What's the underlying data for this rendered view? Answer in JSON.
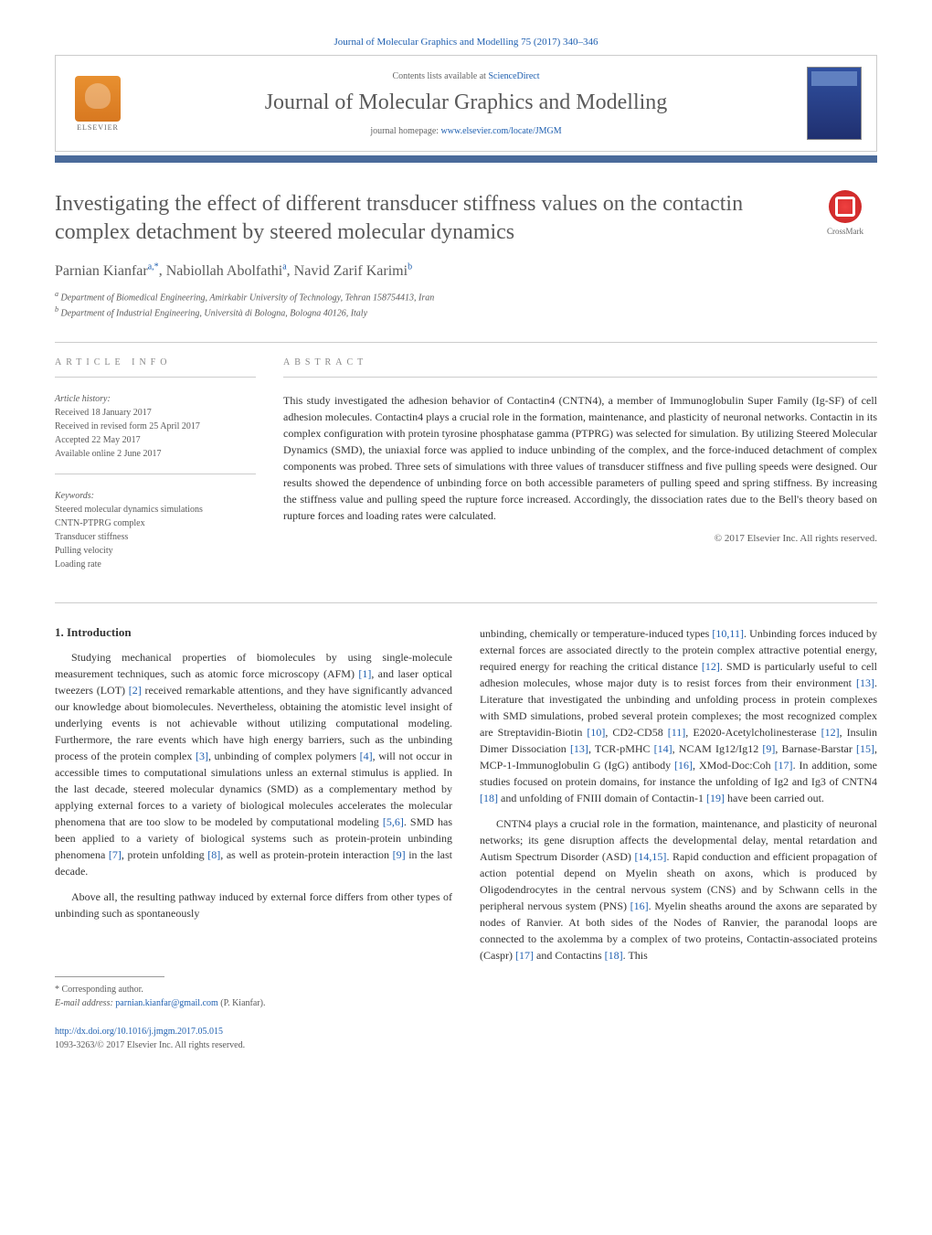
{
  "header": {
    "journal_ref": "Journal of Molecular Graphics and Modelling 75 (2017) 340–346",
    "contents_text": "Contents lists available at ",
    "contents_link": "ScienceDirect",
    "journal_name": "Journal of Molecular Graphics and Modelling",
    "homepage_text": "journal homepage: ",
    "homepage_link": "www.elsevier.com/locate/JMGM",
    "publisher": "ELSEVIER"
  },
  "crossmark": "CrossMark",
  "title": "Investigating the effect of different transducer stiffness values on the contactin complex detachment by steered molecular dynamics",
  "authors": [
    {
      "name": "Parnian Kianfar",
      "sup": "a,*"
    },
    {
      "name": "Nabiollah Abolfathi",
      "sup": "a"
    },
    {
      "name": "Navid Zarif Karimi",
      "sup": "b"
    }
  ],
  "affiliations": [
    {
      "sup": "a",
      "text": "Department of Biomedical Engineering, Amirkabir University of Technology, Tehran 158754413, Iran"
    },
    {
      "sup": "b",
      "text": "Department of Industrial Engineering, Università di Bologna, Bologna 40126, Italy"
    }
  ],
  "article_info": {
    "label": "article info",
    "history_title": "Article history:",
    "history": [
      "Received 18 January 2017",
      "Received in revised form 25 April 2017",
      "Accepted 22 May 2017",
      "Available online 2 June 2017"
    ],
    "keywords_title": "Keywords:",
    "keywords": [
      "Steered molecular dynamics simulations",
      "CNTN-PTPRG complex",
      "Transducer stiffness",
      "Pulling velocity",
      "Loading rate"
    ]
  },
  "abstract": {
    "label": "abstract",
    "text": "This study investigated the adhesion behavior of Contactin4 (CNTN4), a member of Immunoglobulin Super Family (Ig-SF) of cell adhesion molecules. Contactin4 plays a crucial role in the formation, maintenance, and plasticity of neuronal networks. Contactin in its complex configuration with protein tyrosine phosphatase gamma (PTPRG) was selected for simulation. By utilizing Steered Molecular Dynamics (SMD), the uniaxial force was applied to induce unbinding of the complex, and the force-induced detachment of complex components was probed. Three sets of simulations with three values of transducer stiffness and five pulling speeds were designed. Our results showed the dependence of unbinding force on both accessible parameters of pulling speed and spring stiffness. By increasing the stiffness value and pulling speed the rupture force increased. Accordingly, the dissociation rates due to the Bell's theory based on rupture forces and loading rates were calculated.",
    "copyright": "© 2017 Elsevier Inc. All rights reserved."
  },
  "body": {
    "section_number": "1.",
    "section_title": "Introduction",
    "col1": [
      "Studying mechanical properties of biomolecules by using single-molecule measurement techniques, such as atomic force microscopy (AFM) [1], and laser optical tweezers (LOT) [2] received remarkable attentions, and they have significantly advanced our knowledge about biomolecules. Nevertheless, obtaining the atomistic level insight of underlying events is not achievable without utilizing computational modeling. Furthermore, the rare events which have high energy barriers, such as the unbinding process of the protein complex [3], unbinding of complex polymers [4], will not occur in accessible times to computational simulations unless an external stimulus is applied. In the last decade, steered molecular dynamics (SMD) as a complementary method by applying external forces to a variety of biological molecules accelerates the molecular phenomena that are too slow to be modeled by computational modeling [5,6]. SMD has been applied to a variety of biological systems such as protein-protein unbinding phenomena [7], protein unfolding [8], as well as protein-protein interaction [9] in the last decade.",
      "Above all, the resulting pathway induced by external force differs from other types of unbinding such as spontaneously"
    ],
    "col2": [
      "unbinding, chemically or temperature-induced types [10,11]. Unbinding forces induced by external forces are associated directly to the protein complex attractive potential energy, required energy for reaching the critical distance [12]. SMD is particularly useful to cell adhesion molecules, whose major duty is to resist forces from their environment [13]. Literature that investigated the unbinding and unfolding process in protein complexes with SMD simulations, probed several protein complexes; the most recognized complex are Streptavidin-Biotin [10], CD2-CD58 [11], E2020-Acetylcholinesterase [12], Insulin Dimer Dissociation [13], TCR-pMHC [14], NCAM Ig12/Ig12 [9], Barnase-Barstar [15], MCP-1-Immunoglobulin G (IgG) antibody [16], XMod-Doc:Coh [17]. In addition, some studies focused on protein domains, for instance the unfolding of Ig2 and Ig3 of CNTN4 [18] and unfolding of FNIII domain of Contactin-1 [19] have been carried out.",
      "CNTN4 plays a crucial role in the formation, maintenance, and plasticity of neuronal networks; its gene disruption affects the developmental delay, mental retardation and Autism Spectrum Disorder (ASD) [14,15]. Rapid conduction and efficient propagation of action potential depend on Myelin sheath on axons, which is produced by Oligodendrocytes in the central nervous system (CNS) and by Schwann cells in the peripheral nervous system (PNS) [16]. Myelin sheaths around the axons are separated by nodes of Ranvier. At both sides of the Nodes of Ranvier, the paranodal loops are connected to the axolemma by a complex of two proteins, Contactin-associated proteins (Caspr) [17] and Contactins [18]. This"
    ]
  },
  "footer": {
    "corresponding": "* Corresponding author.",
    "email_label": "E-mail address: ",
    "email": "parnian.kianfar@gmail.com",
    "email_author": " (P. Kianfar).",
    "doi": "http://dx.doi.org/10.1016/j.jmgm.2017.05.015",
    "issn": "1093-3263/© 2017 Elsevier Inc. All rights reserved."
  },
  "colors": {
    "link": "#2060b0",
    "heading": "#5a5a5a",
    "bar": "#4a6a9a",
    "text": "#333333"
  }
}
